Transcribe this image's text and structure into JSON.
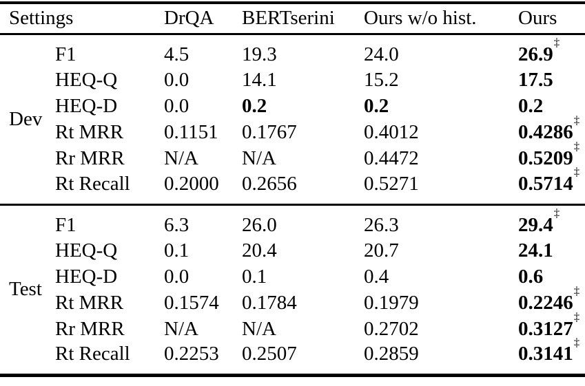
{
  "page": {
    "background_color": "#ffffff",
    "text_color": "#000000"
  },
  "table": {
    "header": {
      "settings_label": "Settings",
      "columns": [
        "DrQA",
        "BERTserini",
        "Ours w/o hist.",
        "Ours"
      ]
    },
    "dagger_symbol": "‡",
    "sections": [
      {
        "label": "Dev",
        "rows": [
          {
            "metric": "F1",
            "cells": [
              {
                "text": "4.5"
              },
              {
                "text": "19.3"
              },
              {
                "text": "24.0"
              },
              {
                "text": "26.9",
                "bold": true,
                "sup": "‡"
              }
            ]
          },
          {
            "metric": "HEQ-Q",
            "cells": [
              {
                "text": "0.0"
              },
              {
                "text": "14.1"
              },
              {
                "text": "15.2"
              },
              {
                "text": "17.5",
                "bold": true
              }
            ]
          },
          {
            "metric": "HEQ-D",
            "cells": [
              {
                "text": "0.0"
              },
              {
                "text": "0.2",
                "bold": true
              },
              {
                "text": "0.2",
                "bold": true
              },
              {
                "text": "0.2",
                "bold": true
              }
            ]
          },
          {
            "metric": "Rt MRR",
            "cells": [
              {
                "text": "0.1151"
              },
              {
                "text": "0.1767"
              },
              {
                "text": "0.4012"
              },
              {
                "text": "0.4286",
                "bold": true,
                "sup": "‡"
              }
            ]
          },
          {
            "metric": "Rr MRR",
            "cells": [
              {
                "text": "N/A"
              },
              {
                "text": "N/A"
              },
              {
                "text": "0.4472"
              },
              {
                "text": "0.5209",
                "bold": true,
                "sup": "‡"
              }
            ]
          },
          {
            "metric": "Rt Recall",
            "cells": [
              {
                "text": "0.2000"
              },
              {
                "text": "0.2656"
              },
              {
                "text": "0.5271"
              },
              {
                "text": "0.5714",
                "bold": true,
                "sup": "‡"
              }
            ]
          }
        ]
      },
      {
        "label": "Test",
        "rows": [
          {
            "metric": "F1",
            "cells": [
              {
                "text": "6.3"
              },
              {
                "text": "26.0"
              },
              {
                "text": "26.3"
              },
              {
                "text": "29.4",
                "bold": true,
                "sup": "‡"
              }
            ]
          },
          {
            "metric": "HEQ-Q",
            "cells": [
              {
                "text": "0.1"
              },
              {
                "text": "20.4"
              },
              {
                "text": "20.7"
              },
              {
                "text": "24.1",
                "bold": true
              }
            ]
          },
          {
            "metric": "HEQ-D",
            "cells": [
              {
                "text": "0.0"
              },
              {
                "text": "0.1"
              },
              {
                "text": "0.4"
              },
              {
                "text": "0.6",
                "bold": true
              }
            ]
          },
          {
            "metric": "Rt MRR",
            "cells": [
              {
                "text": "0.1574"
              },
              {
                "text": "0.1784"
              },
              {
                "text": "0.1979"
              },
              {
                "text": "0.2246",
                "bold": true,
                "sup": "‡"
              }
            ]
          },
          {
            "metric": "Rr MRR",
            "cells": [
              {
                "text": "N/A"
              },
              {
                "text": "N/A"
              },
              {
                "text": "0.2702"
              },
              {
                "text": "0.3127",
                "bold": true,
                "sup": "‡"
              }
            ]
          },
          {
            "metric": "Rt Recall",
            "cells": [
              {
                "text": "0.2253"
              },
              {
                "text": "0.2507"
              },
              {
                "text": "0.2859"
              },
              {
                "text": "0.3141",
                "bold": true,
                "sup": "‡"
              }
            ]
          }
        ]
      }
    ]
  }
}
